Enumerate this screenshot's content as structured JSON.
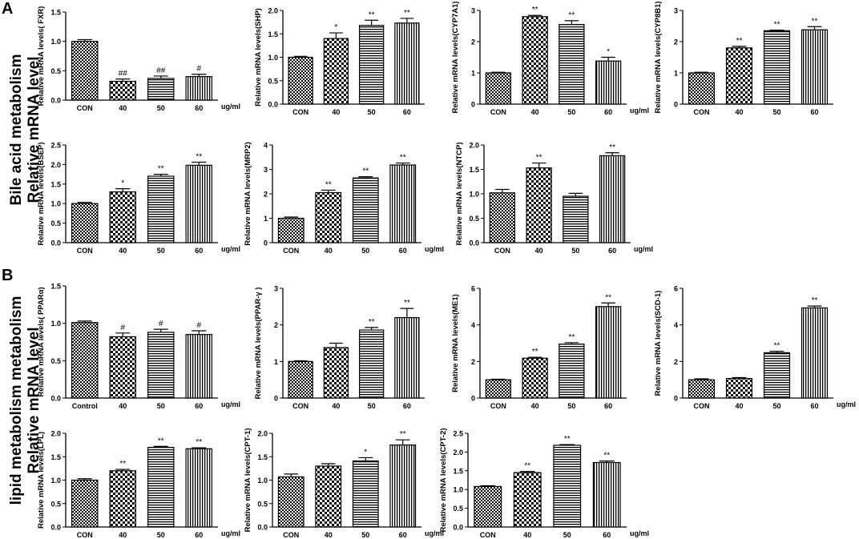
{
  "panels": {
    "A": {
      "letter": "A",
      "label_line1": "Bile acid metabolism",
      "label_line2": "Relative mRNA level"
    },
    "B": {
      "letter": "B",
      "label_line1": "lipid metabolism metabolism",
      "label_line2": "Relative mRNA level"
    }
  },
  "chart_data": [
    {
      "id": "fxr",
      "type": "bar",
      "ylabel": "Relative mRNA levels( FXR)",
      "categories": [
        "CON",
        "40",
        "50",
        "60"
      ],
      "unit": "ug/ml",
      "values": [
        1.0,
        0.32,
        0.37,
        0.4
      ],
      "errors": [
        0.03,
        0.04,
        0.04,
        0.04
      ],
      "signif": [
        "",
        "##",
        "##",
        "#"
      ],
      "ylim": [
        0,
        1.5
      ],
      "yticks": [
        0.0,
        0.5,
        1.0,
        1.5
      ]
    },
    {
      "id": "shp",
      "type": "bar",
      "ylabel": "Relative mRNA levels(SHP)",
      "categories": [
        "CON",
        "40",
        "50",
        "60"
      ],
      "unit": "",
      "values": [
        1.0,
        1.4,
        1.68,
        1.73
      ],
      "errors": [
        0.02,
        0.12,
        0.11,
        0.1
      ],
      "signif": [
        "",
        "*",
        "**",
        "**"
      ],
      "ylim": [
        0,
        2.0
      ],
      "yticks": [
        0.0,
        0.5,
        1.0,
        1.5,
        2.0
      ]
    },
    {
      "id": "cyp7a1",
      "type": "bar",
      "ylabel": "Relative mRNA levels(CYP7A1)",
      "categories": [
        "CON",
        "40",
        "50",
        "60"
      ],
      "unit": "ug/ml",
      "values": [
        1.0,
        2.8,
        2.55,
        1.38
      ],
      "errors": [
        0.02,
        0.04,
        0.12,
        0.12
      ],
      "signif": [
        "",
        "**",
        "**",
        "*"
      ],
      "ylim": [
        0,
        3
      ],
      "yticks": [
        0,
        1,
        2,
        3
      ]
    },
    {
      "id": "cyp8b1",
      "type": "bar",
      "ylabel": "Relative mRNA levels(CYP8B1)",
      "categories": [
        "CON",
        "40",
        "50",
        "60"
      ],
      "unit": "",
      "values": [
        1.0,
        1.8,
        2.35,
        2.38
      ],
      "errors": [
        0.02,
        0.05,
        0.02,
        0.1
      ],
      "signif": [
        "",
        "**",
        "**",
        "**"
      ],
      "ylim": [
        0,
        3
      ],
      "yticks": [
        0,
        1,
        2,
        3
      ]
    },
    {
      "id": "bsep",
      "type": "bar",
      "ylabel": "Relative mRNA levels(BSEP)",
      "categories": [
        "CON",
        "40",
        "50",
        "60"
      ],
      "unit": "ug/ml",
      "values": [
        1.0,
        1.3,
        1.7,
        1.98
      ],
      "errors": [
        0.03,
        0.08,
        0.05,
        0.08
      ],
      "signif": [
        "",
        "*",
        "**",
        "**"
      ],
      "ylim": [
        0,
        2.5
      ],
      "yticks": [
        0.0,
        0.5,
        1.0,
        1.5,
        2.0,
        2.5
      ]
    },
    {
      "id": "mrp2",
      "type": "bar",
      "ylabel": "Relative mRNA levels(MRP2)",
      "categories": [
        "CON",
        "40",
        "50",
        "60"
      ],
      "unit": "ug/ml",
      "values": [
        1.0,
        2.05,
        2.65,
        3.18
      ],
      "errors": [
        0.05,
        0.1,
        0.05,
        0.08
      ],
      "signif": [
        "",
        "**",
        "**",
        "**"
      ],
      "ylim": [
        0,
        4
      ],
      "yticks": [
        0,
        1,
        2,
        3,
        4
      ]
    },
    {
      "id": "ntcp",
      "type": "bar",
      "ylabel": "Relative mRNA levels(NTCP)",
      "categories": [
        "CON",
        "40",
        "50",
        "60"
      ],
      "unit": "ug/ml",
      "values": [
        1.02,
        1.53,
        0.95,
        1.78
      ],
      "errors": [
        0.07,
        0.1,
        0.06,
        0.06
      ],
      "signif": [
        "",
        "**",
        "",
        "**"
      ],
      "ylim": [
        0,
        2.0
      ],
      "yticks": [
        0.0,
        0.5,
        1.0,
        1.5,
        2.0
      ]
    },
    {
      "id": "ppara",
      "type": "bar",
      "ylabel": "Relative mRNA levels( PPARα)",
      "categories": [
        "Control",
        "40",
        "50",
        "60"
      ],
      "unit": "ug/ml",
      "values": [
        1.01,
        0.82,
        0.88,
        0.85
      ],
      "errors": [
        0.02,
        0.05,
        0.04,
        0.05
      ],
      "signif": [
        "",
        "#",
        "#",
        "#"
      ],
      "ylim": [
        0,
        1.5
      ],
      "yticks": [
        0.0,
        0.5,
        1.0,
        1.5
      ]
    },
    {
      "id": "pparg",
      "type": "bar",
      "ylabel": "Relative mRNA levels(PPAR-γ )",
      "categories": [
        "CON",
        "40",
        "50",
        "60"
      ],
      "unit": "",
      "values": [
        1.0,
        1.38,
        1.86,
        2.2
      ],
      "errors": [
        0.02,
        0.12,
        0.07,
        0.25
      ],
      "signif": [
        "",
        "",
        "**",
        "**"
      ],
      "ylim": [
        0,
        3
      ],
      "yticks": [
        0,
        1,
        2,
        3
      ]
    },
    {
      "id": "me1",
      "type": "bar",
      "ylabel": "Relative mRNA levels(ME1)",
      "categories": [
        "CON",
        "40",
        "50",
        "60"
      ],
      "unit": "",
      "values": [
        1.0,
        2.18,
        2.95,
        5.0
      ],
      "errors": [
        0.03,
        0.05,
        0.08,
        0.2
      ],
      "signif": [
        "",
        "**",
        "**",
        "**"
      ],
      "ylim": [
        0,
        6
      ],
      "yticks": [
        0,
        2,
        4,
        6
      ]
    },
    {
      "id": "scd1",
      "type": "bar",
      "ylabel": "Relative mRNA levels(SCD-1)",
      "categories": [
        "CON",
        "40",
        "50",
        "60"
      ],
      "unit": "ug/ml",
      "values": [
        1.0,
        1.07,
        2.48,
        4.93
      ],
      "errors": [
        0.05,
        0.05,
        0.08,
        0.1
      ],
      "signif": [
        "",
        "",
        "**",
        "**"
      ],
      "ylim": [
        0,
        6
      ],
      "yticks": [
        0,
        2,
        4,
        6
      ]
    },
    {
      "id": "lpl",
      "type": "bar",
      "ylabel": "Relative mRNA levels(LPL)",
      "categories": [
        "CON",
        "40",
        "50",
        "60"
      ],
      "unit": "ug/ml",
      "values": [
        1.0,
        1.2,
        1.7,
        1.67
      ],
      "errors": [
        0.03,
        0.03,
        0.02,
        0.02
      ],
      "signif": [
        "",
        "**",
        "**",
        "**"
      ],
      "ylim": [
        0,
        2.0
      ],
      "yticks": [
        0.0,
        0.5,
        1.0,
        1.5,
        2.0
      ]
    },
    {
      "id": "cpt1",
      "type": "bar",
      "ylabel": "Relative mRNA levels(CPT-1)",
      "categories": [
        "CON",
        "40",
        "50",
        "60"
      ],
      "unit": "ug/ml",
      "values": [
        1.07,
        1.3,
        1.41,
        1.75
      ],
      "errors": [
        0.06,
        0.05,
        0.07,
        0.11
      ],
      "signif": [
        "",
        "",
        "*",
        "**"
      ],
      "ylim": [
        0,
        2.0
      ],
      "yticks": [
        0.0,
        0.5,
        1.0,
        1.5,
        2.0
      ]
    },
    {
      "id": "cpt2",
      "type": "bar",
      "ylabel": "Relative mRNA levels(CPT-2)",
      "categories": [
        "CON",
        "40",
        "50",
        "60"
      ],
      "unit": "ug/ml",
      "values": [
        1.08,
        1.45,
        2.18,
        1.72
      ],
      "errors": [
        0.02,
        0.03,
        0.02,
        0.04
      ],
      "signif": [
        "",
        "**",
        "**",
        "**"
      ],
      "ylim": [
        0,
        2.5
      ],
      "yticks": [
        0.0,
        0.5,
        1.0,
        1.5,
        2.0,
        2.5
      ]
    }
  ]
}
